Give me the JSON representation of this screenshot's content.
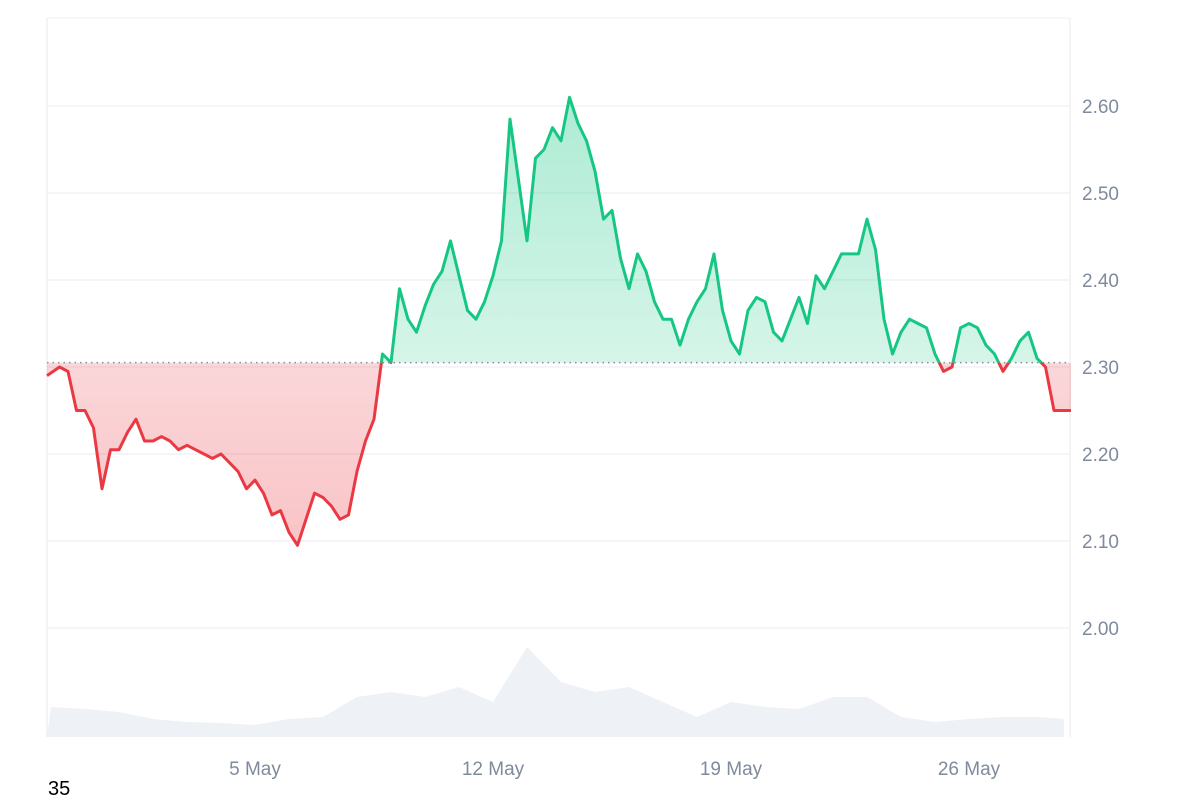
{
  "chart_data": {
    "type": "area",
    "baseline": 2.305,
    "ylim": [
      2.0,
      2.7
    ],
    "yticks": [
      2.0,
      2.1,
      2.2,
      2.3,
      2.4,
      2.5,
      2.6
    ],
    "ytick_labels": [
      "2.00",
      "2.10",
      "2.20",
      "2.30",
      "2.40",
      "2.50",
      "2.60"
    ],
    "xticks": [
      "5 May",
      "12 May",
      "19 May",
      "26 May"
    ],
    "grid": true,
    "colors": {
      "up": "#16c784",
      "down": "#ea3943",
      "volume": "#eef1f5",
      "grid": "#eff2f5",
      "tick": "#808a9d"
    },
    "price": {
      "x": [
        "29 Apr 00:00",
        "29 Apr 06:00",
        "29 Apr 12:00",
        "29 Apr 18:00",
        "30 Apr 00:00",
        "30 Apr 06:00",
        "30 Apr 12:00",
        "30 Apr 18:00",
        "1 May 00:00",
        "1 May 06:00",
        "1 May 12:00",
        "1 May 18:00",
        "2 May 00:00",
        "2 May 06:00",
        "2 May 12:00",
        "2 May 18:00",
        "3 May 00:00",
        "3 May 06:00",
        "3 May 12:00",
        "3 May 18:00",
        "4 May 00:00",
        "4 May 06:00",
        "4 May 12:00",
        "4 May 18:00",
        "5 May 00:00",
        "5 May 06:00",
        "5 May 12:00",
        "5 May 18:00",
        "6 May 00:00",
        "6 May 06:00",
        "6 May 12:00",
        "6 May 18:00",
        "7 May 00:00",
        "7 May 06:00",
        "7 May 12:00",
        "7 May 18:00",
        "8 May 00:00",
        "8 May 06:00",
        "8 May 12:00",
        "8 May 18:00",
        "9 May 00:00",
        "9 May 06:00",
        "9 May 12:00",
        "9 May 18:00",
        "10 May 00:00",
        "10 May 06:00",
        "10 May 12:00",
        "10 May 18:00",
        "11 May 00:00",
        "11 May 06:00",
        "11 May 12:00",
        "11 May 18:00",
        "12 May 00:00",
        "12 May 06:00",
        "12 May 12:00",
        "12 May 18:00",
        "13 May 00:00",
        "13 May 06:00",
        "13 May 12:00",
        "13 May 18:00",
        "14 May 00:00",
        "14 May 06:00",
        "14 May 12:00",
        "14 May 18:00",
        "15 May 00:00",
        "15 May 06:00",
        "15 May 12:00",
        "15 May 18:00",
        "16 May 00:00",
        "16 May 06:00",
        "16 May 12:00",
        "16 May 18:00",
        "17 May 00:00",
        "17 May 06:00",
        "17 May 12:00",
        "17 May 18:00",
        "18 May 00:00",
        "18 May 06:00",
        "18 May 12:00",
        "18 May 18:00",
        "19 May 00:00",
        "19 May 06:00",
        "19 May 12:00",
        "19 May 18:00",
        "20 May 00:00",
        "20 May 06:00",
        "20 May 12:00",
        "20 May 18:00",
        "21 May 00:00",
        "21 May 06:00",
        "21 May 12:00",
        "21 May 18:00",
        "22 May 00:00",
        "22 May 06:00",
        "22 May 12:00",
        "22 May 18:00",
        "23 May 00:00",
        "23 May 06:00",
        "23 May 12:00",
        "23 May 18:00",
        "24 May 00:00",
        "24 May 06:00",
        "24 May 12:00",
        "24 May 18:00",
        "25 May 00:00",
        "25 May 06:00",
        "25 May 12:00",
        "25 May 18:00",
        "26 May 00:00",
        "26 May 06:00",
        "26 May 12:00",
        "26 May 18:00",
        "27 May 00:00",
        "27 May 06:00",
        "27 May 12:00",
        "27 May 18:00",
        "28 May 00:00",
        "28 May 06:00",
        "28 May 12:00",
        "28 May 18:00",
        "29 May 00:00"
      ],
      "y": [
        2.29,
        2.3,
        2.295,
        2.25,
        2.25,
        2.23,
        2.16,
        2.205,
        2.205,
        2.225,
        2.24,
        2.215,
        2.215,
        2.22,
        2.215,
        2.205,
        2.21,
        2.205,
        2.2,
        2.195,
        2.2,
        2.19,
        2.18,
        2.16,
        2.17,
        2.155,
        2.13,
        2.135,
        2.11,
        2.095,
        2.125,
        2.155,
        2.15,
        2.14,
        2.125,
        2.13,
        2.18,
        2.215,
        2.24,
        2.315,
        2.305,
        2.39,
        2.355,
        2.34,
        2.37,
        2.395,
        2.41,
        2.445,
        2.405,
        2.365,
        2.355,
        2.375,
        2.405,
        2.445,
        2.585,
        2.515,
        2.445,
        2.54,
        2.55,
        2.575,
        2.56,
        2.61,
        2.58,
        2.56,
        2.525,
        2.47,
        2.48,
        2.425,
        2.39,
        2.43,
        2.41,
        2.375,
        2.355,
        2.355,
        2.325,
        2.355,
        2.375,
        2.39,
        2.43,
        2.365,
        2.33,
        2.315,
        2.365,
        2.38,
        2.375,
        2.34,
        2.33,
        2.355,
        2.38,
        2.35,
        2.405,
        2.39,
        2.41,
        2.43,
        2.43,
        2.43,
        2.47,
        2.435,
        2.355,
        2.315,
        2.34,
        2.355,
        2.35,
        2.345,
        2.315,
        2.295,
        2.3,
        2.345,
        2.35,
        2.345,
        2.325,
        2.315,
        2.295,
        2.31,
        2.33,
        2.34,
        2.31,
        2.3,
        2.25,
        2.25,
        2.25
      ]
    },
    "volume": {
      "x": [
        "29 Apr",
        "30 Apr",
        "1 May",
        "2 May",
        "3 May",
        "4 May",
        "5 May",
        "6 May",
        "7 May",
        "8 May",
        "9 May",
        "10 May",
        "11 May",
        "12 May",
        "13 May",
        "14 May",
        "15 May",
        "16 May",
        "17 May",
        "18 May",
        "19 May",
        "20 May",
        "21 May",
        "22 May",
        "23 May",
        "24 May",
        "25 May",
        "26 May",
        "27 May",
        "28 May",
        "29 May"
      ],
      "relative": [
        30,
        28,
        25,
        18,
        15,
        14,
        12,
        18,
        20,
        40,
        45,
        40,
        50,
        35,
        90,
        55,
        45,
        50,
        35,
        20,
        35,
        30,
        28,
        40,
        40,
        20,
        15,
        18,
        20,
        20,
        18
      ]
    }
  },
  "footer": {
    "corner_label": "35"
  }
}
